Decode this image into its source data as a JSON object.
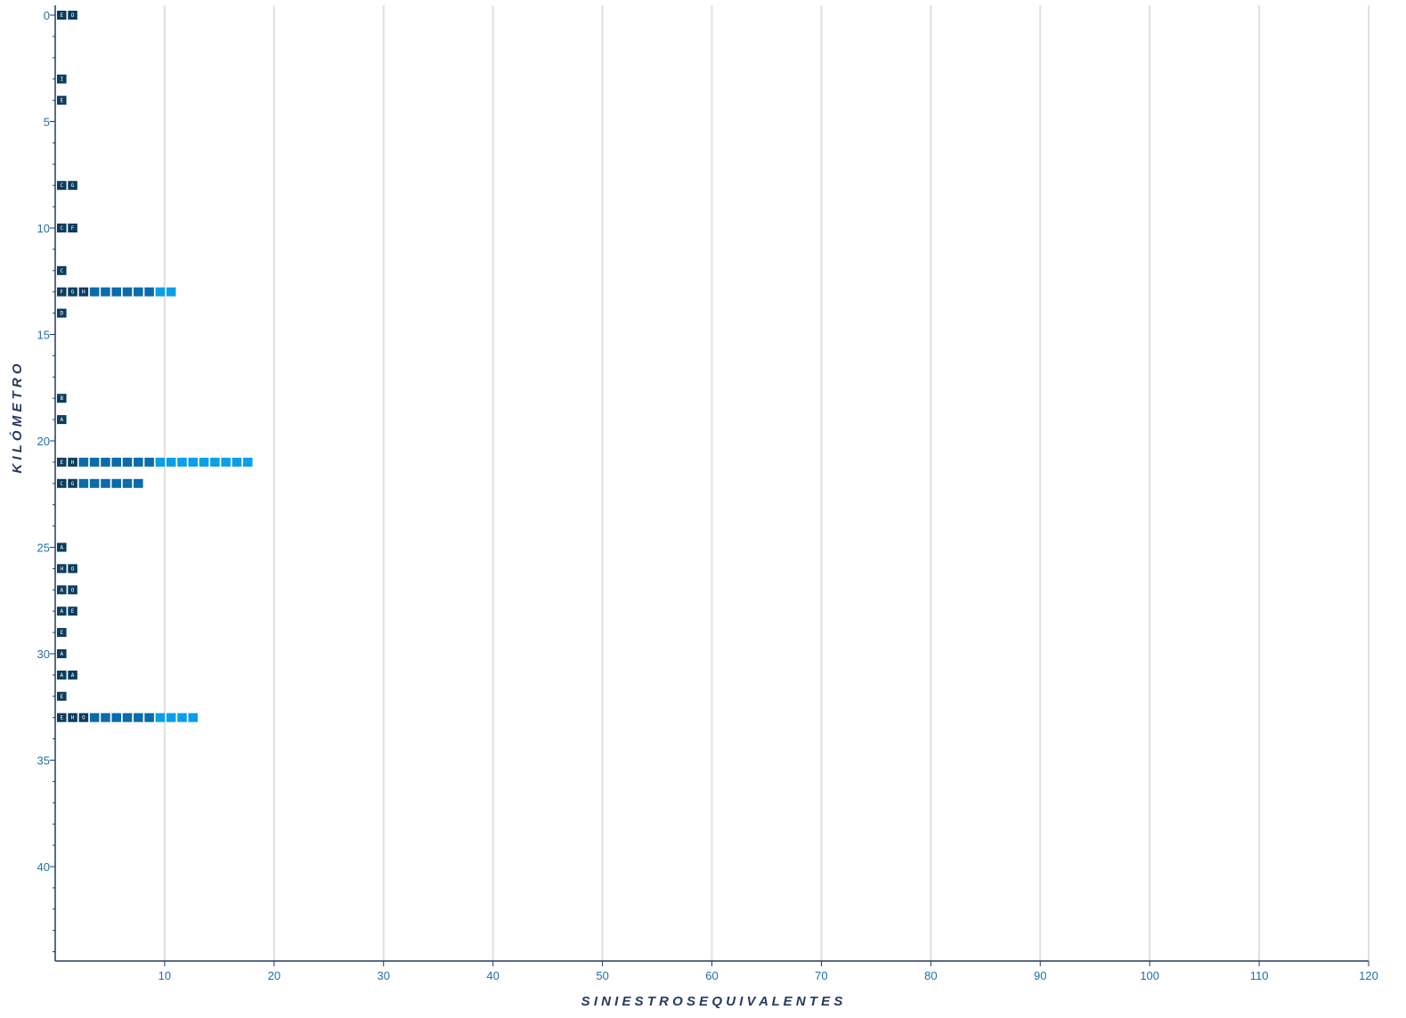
{
  "chart_data": {
    "type": "bar",
    "orientation": "horizontal",
    "xlabel": "S I N I E S T R O S   E Q U I V A L E N T E S",
    "ylabel": "K I L Ó M E T R O",
    "xlim": [
      0,
      120
    ],
    "ylim": [
      0,
      44
    ],
    "x_ticks": [
      10,
      20,
      30,
      40,
      50,
      60,
      70,
      80,
      90,
      100,
      110,
      120
    ],
    "y_ticks": [
      0,
      5,
      10,
      15,
      20,
      25,
      30,
      35,
      40
    ],
    "grid": "vertical",
    "colors": {
      "grid": "#e0e0e0",
      "axis": "#253a5e",
      "tick_label": "#1f6fa5",
      "letter_cell": "#0b3d5e",
      "mid_cell": "#0b6bab",
      "high_cell": "#0a9fe8",
      "letter_text": "#ffffff"
    },
    "rows": [
      {
        "km": 0,
        "value": 2,
        "letters": [
          "E",
          "O"
        ]
      },
      {
        "km": 3,
        "value": 1,
        "letters": [
          "I"
        ]
      },
      {
        "km": 4,
        "value": 1,
        "letters": [
          "E"
        ]
      },
      {
        "km": 8,
        "value": 2,
        "letters": [
          "C",
          "G"
        ]
      },
      {
        "km": 10,
        "value": 2,
        "letters": [
          "C",
          "F"
        ]
      },
      {
        "km": 12,
        "value": 1,
        "letters": [
          "C"
        ]
      },
      {
        "km": 13,
        "value": 11,
        "letters": [
          "F",
          "G",
          "H"
        ]
      },
      {
        "km": 14,
        "value": 1,
        "letters": [
          "D"
        ]
      },
      {
        "km": 18,
        "value": 1,
        "letters": [
          "B"
        ]
      },
      {
        "km": 19,
        "value": 1,
        "letters": [
          "A"
        ]
      },
      {
        "km": 21,
        "value": 18,
        "letters": [
          "E",
          "H"
        ]
      },
      {
        "km": 22,
        "value": 8,
        "letters": [
          "C",
          "G"
        ]
      },
      {
        "km": 25,
        "value": 1,
        "letters": [
          "A"
        ]
      },
      {
        "km": 26,
        "value": 2,
        "letters": [
          "H",
          "O"
        ]
      },
      {
        "km": 27,
        "value": 2,
        "letters": [
          "A",
          "O"
        ]
      },
      {
        "km": 28,
        "value": 2,
        "letters": [
          "A",
          "E"
        ]
      },
      {
        "km": 29,
        "value": 1,
        "letters": [
          "E"
        ]
      },
      {
        "km": 30,
        "value": 1,
        "letters": [
          "A"
        ]
      },
      {
        "km": 31,
        "value": 2,
        "letters": [
          "A",
          "A"
        ]
      },
      {
        "km": 32,
        "value": 1,
        "letters": [
          "E"
        ]
      },
      {
        "km": 33,
        "value": 13,
        "letters": [
          "E",
          "H",
          "O"
        ]
      }
    ]
  }
}
